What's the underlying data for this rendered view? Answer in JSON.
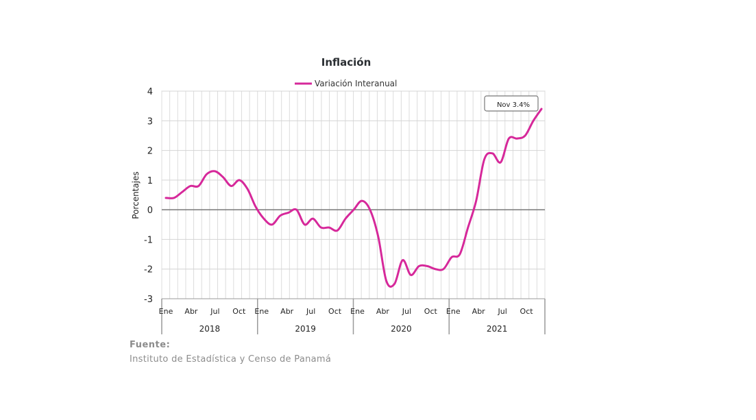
{
  "chart_data": {
    "type": "line",
    "title": "Inflación",
    "ylabel": "Porcentajes",
    "xlabel": "",
    "ylim": [
      -3,
      4
    ],
    "yticks": [
      "4",
      "3",
      "2",
      "1",
      "0",
      "-1",
      "-2",
      "-3"
    ],
    "ytick_values": [
      4,
      3,
      2,
      1,
      0,
      -1,
      -2,
      -3
    ],
    "grid": true,
    "legend_position": "top",
    "month_labels": [
      "Ene",
      "Abr",
      "Jul",
      "Oct"
    ],
    "years": [
      "2018",
      "2019",
      "2020",
      "2021"
    ],
    "series": [
      {
        "name": "Variación Interanual",
        "color": "#d6289a",
        "x": [
          "2018-01",
          "2018-02",
          "2018-03",
          "2018-04",
          "2018-05",
          "2018-06",
          "2018-07",
          "2018-08",
          "2018-09",
          "2018-10",
          "2018-11",
          "2018-12",
          "2019-01",
          "2019-02",
          "2019-03",
          "2019-04",
          "2019-05",
          "2019-06",
          "2019-07",
          "2019-08",
          "2019-09",
          "2019-10",
          "2019-11",
          "2019-12",
          "2020-01",
          "2020-02",
          "2020-03",
          "2020-04",
          "2020-05",
          "2020-06",
          "2020-07",
          "2020-08",
          "2020-09",
          "2020-10",
          "2020-11",
          "2020-12",
          "2021-01",
          "2021-02",
          "2021-03",
          "2021-04",
          "2021-05",
          "2021-06",
          "2021-07",
          "2021-08",
          "2021-09",
          "2021-10",
          "2021-11"
        ],
        "values": [
          0.4,
          0.4,
          0.6,
          0.8,
          0.8,
          1.2,
          1.3,
          1.1,
          0.8,
          1.0,
          0.7,
          0.1,
          -0.3,
          -0.5,
          -0.2,
          -0.1,
          0.0,
          -0.5,
          -0.3,
          -0.6,
          -0.6,
          -0.7,
          -0.3,
          0.0,
          0.3,
          0.0,
          -0.9,
          -2.4,
          -2.5,
          -1.7,
          -2.2,
          -1.9,
          -1.9,
          -2.0,
          -2.0,
          -1.6,
          -1.5,
          -0.6,
          0.3,
          1.7,
          1.9,
          1.6,
          2.4,
          2.4,
          2.5,
          3.0,
          3.4
        ]
      }
    ],
    "annotation": "Nov 3.4%"
  },
  "source": {
    "label": "Fuente:",
    "value": "Instituto de Estadística y Censo de Panamá"
  }
}
